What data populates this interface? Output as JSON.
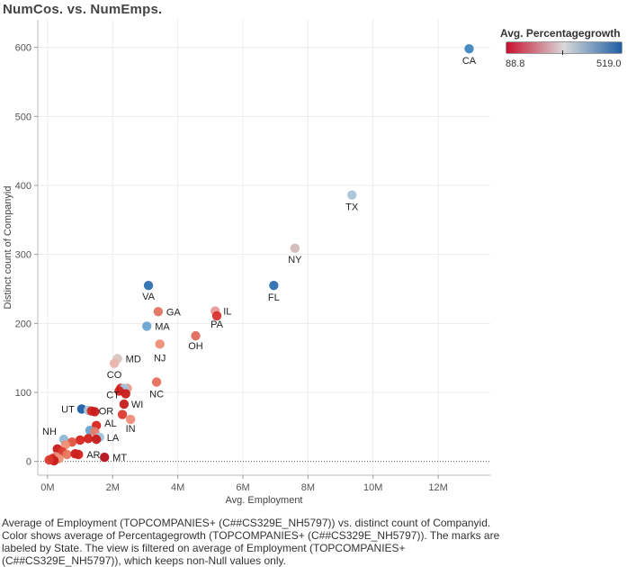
{
  "title": "NumCos. vs. NumEmps.",
  "caption": "Average of Employment (TOPCOMPANIES+ (C##CS329E_NH5797)) vs. distinct count of Companyid. Color shows average of Percentagegrowth (TOPCOMPANIES+ (C##CS329E_NH5797)).  The marks are labeled by State. The view is filtered on average of Employment (TOPCOMPANIES+ (C##CS329E_NH5797)), which keeps non-Null values only.",
  "legend": {
    "title": "Avg. Percentagegrowth",
    "min_label": "88.8",
    "max_label": "519.0",
    "min_color": "#c8102e",
    "mid_color": "#d9d9d9",
    "max_color": "#1f5fa5"
  },
  "chart_data": {
    "type": "scatter",
    "xlabel": "Avg. Employment",
    "ylabel": "Distinct count of Companyid",
    "xlim": [
      -0.3,
      13.6
    ],
    "ylim": [
      -20,
      640
    ],
    "x_unit": "M",
    "x_ticks": [
      0,
      2,
      4,
      6,
      8,
      10,
      12
    ],
    "x_tick_labels": [
      "0M",
      "2M",
      "4M",
      "6M",
      "8M",
      "10M",
      "12M"
    ],
    "y_ticks": [
      0,
      100,
      200,
      300,
      400,
      500,
      600
    ],
    "y_tick_labels": [
      "0",
      "100",
      "200",
      "300",
      "400",
      "500",
      "600"
    ],
    "grid": true,
    "zero_line": "dotted",
    "legend_position": "top-right",
    "points": [
      {
        "x": 12.95,
        "y": 598,
        "color": "#3e86c0",
        "label": "CA"
      },
      {
        "x": 9.35,
        "y": 386,
        "color": "#a9c4d8",
        "label": "TX"
      },
      {
        "x": 7.6,
        "y": 309,
        "color": "#d3b9b9",
        "label": "NY"
      },
      {
        "x": 6.95,
        "y": 255,
        "color": "#2e70b0",
        "label": "FL"
      },
      {
        "x": 3.1,
        "y": 255,
        "color": "#2e70b0",
        "label": "VA"
      },
      {
        "x": 5.15,
        "y": 218,
        "color": "#e89a98",
        "label": "IL"
      },
      {
        "x": 5.2,
        "y": 211,
        "color": "#d9332f",
        "label": "PA"
      },
      {
        "x": 4.55,
        "y": 182,
        "color": "#e06a5a",
        "label": "OH"
      },
      {
        "x": 3.4,
        "y": 217,
        "color": "#e57360",
        "label": "GA"
      },
      {
        "x": 3.05,
        "y": 196,
        "color": "#6aa4d0",
        "label": "MA"
      },
      {
        "x": 3.45,
        "y": 170,
        "color": "#ee8e76",
        "label": "NJ"
      },
      {
        "x": 2.15,
        "y": 149,
        "color": "#d8c3c0",
        "label": "MD"
      },
      {
        "x": 2.05,
        "y": 142,
        "color": "#e8b4aa",
        "label": "CO"
      },
      {
        "x": 3.35,
        "y": 115,
        "color": "#e86e5e",
        "label": "NC"
      },
      {
        "x": 2.25,
        "y": 106,
        "color": "#d8241e",
        "label": ""
      },
      {
        "x": 2.45,
        "y": 106,
        "color": "#ef9a88",
        "label": ""
      },
      {
        "x": 2.35,
        "y": 106,
        "color": "#9fc3dc",
        "label": "CT"
      },
      {
        "x": 2.2,
        "y": 102,
        "color": "#d0201c",
        "label": ""
      },
      {
        "x": 2.4,
        "y": 98,
        "color": "#c81b1b",
        "label": ""
      },
      {
        "x": 2.35,
        "y": 83,
        "color": "#c81a1a",
        "label": "WI"
      },
      {
        "x": 1.05,
        "y": 76,
        "color": "#1f5fa5",
        "label": "UT"
      },
      {
        "x": 1.25,
        "y": 74,
        "color": "#a9c4d8",
        "label": ""
      },
      {
        "x": 1.35,
        "y": 73,
        "color": "#d4241e",
        "label": "OR"
      },
      {
        "x": 1.45,
        "y": 72,
        "color": "#c81b1b",
        "label": ""
      },
      {
        "x": 2.3,
        "y": 68,
        "color": "#dd3a2e",
        "label": ""
      },
      {
        "x": 2.55,
        "y": 61,
        "color": "#ef8c78",
        "label": "IN"
      },
      {
        "x": 1.5,
        "y": 52,
        "color": "#d8241e",
        "label": "AL"
      },
      {
        "x": 1.3,
        "y": 45,
        "color": "#6aa4d0",
        "label": ""
      },
      {
        "x": 1.45,
        "y": 43,
        "color": "#e67a6b",
        "label": ""
      },
      {
        "x": 1.6,
        "y": 35,
        "color": "#9fc3dc",
        "label": "LA"
      },
      {
        "x": 1.25,
        "y": 33,
        "color": "#d0201c",
        "label": ""
      },
      {
        "x": 1.5,
        "y": 32,
        "color": "#c81a1a",
        "label": ""
      },
      {
        "x": 1.0,
        "y": 31,
        "color": "#d8241e",
        "label": ""
      },
      {
        "x": 0.5,
        "y": 32,
        "color": "#8fb7d5",
        "label": "NH"
      },
      {
        "x": 0.75,
        "y": 28,
        "color": "#e0523f",
        "label": ""
      },
      {
        "x": 0.55,
        "y": 24,
        "color": "#ee8e76",
        "label": ""
      },
      {
        "x": 0.3,
        "y": 18,
        "color": "#c81a1a",
        "label": ""
      },
      {
        "x": 0.45,
        "y": 14,
        "color": "#d93a2c",
        "label": ""
      },
      {
        "x": 0.6,
        "y": 10,
        "color": "#e8775f",
        "label": ""
      },
      {
        "x": 0.85,
        "y": 11,
        "color": "#c81a1a",
        "label": ""
      },
      {
        "x": 0.95,
        "y": 10,
        "color": "#d0201c",
        "label": "AR"
      },
      {
        "x": 0.25,
        "y": 7,
        "color": "#e28a7e",
        "label": ""
      },
      {
        "x": 0.15,
        "y": 4,
        "color": "#d8241e",
        "label": ""
      },
      {
        "x": 0.35,
        "y": 4,
        "color": "#ee8e76",
        "label": ""
      },
      {
        "x": 0.2,
        "y": 1,
        "color": "#c81a1a",
        "label": ""
      },
      {
        "x": 0.05,
        "y": 2,
        "color": "#d93a2c",
        "label": ""
      },
      {
        "x": 1.75,
        "y": 6,
        "color": "#b5121b",
        "label": "MT"
      }
    ]
  }
}
